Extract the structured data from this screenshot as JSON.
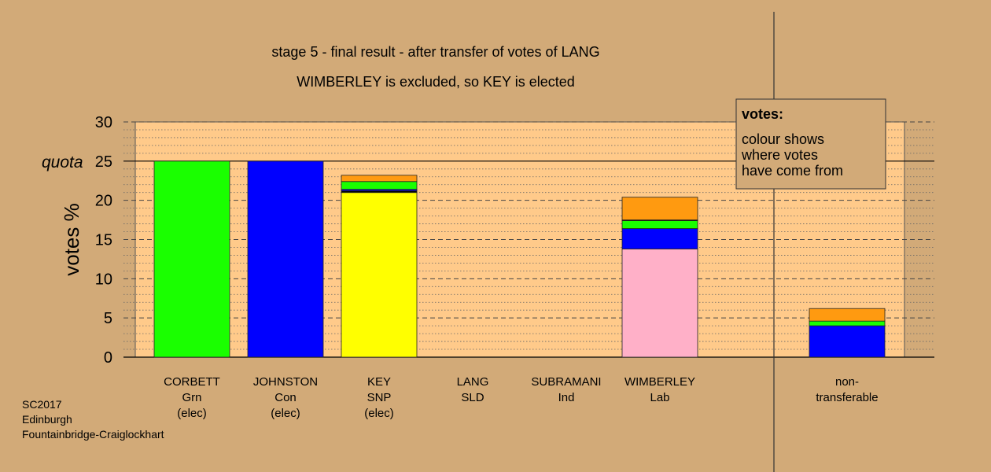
{
  "chart_data": {
    "type": "bar",
    "stacked": true,
    "title": "stage 5 - final result - after transfer of votes of LANG",
    "subtitle": "WIMBERLEY is excluded, so KEY is elected",
    "ylabel": "votes %",
    "ylim": [
      0,
      30
    ],
    "yticks": [
      "0",
      "5",
      "10",
      "15",
      "20",
      "25",
      "30"
    ],
    "quota_label": "quota",
    "quota_value": 25,
    "grid": "dotted minor lines every 1, dashed major lines every 5",
    "legend": {
      "heading": "votes:",
      "lines": [
        "colour shows",
        "where votes",
        "have come from"
      ],
      "placement": "top-right"
    },
    "categories": [
      {
        "lines": [
          "CORBETT",
          "Grn",
          "(elec)"
        ]
      },
      {
        "lines": [
          "JOHNSTON",
          "Con",
          "(elec)"
        ]
      },
      {
        "lines": [
          "KEY",
          "SNP",
          "(elec)"
        ]
      },
      {
        "lines": [
          "LANG",
          "SLD",
          ""
        ]
      },
      {
        "lines": [
          "SUBRAMANI",
          "Ind",
          ""
        ]
      },
      {
        "lines": [
          "WIMBERLEY",
          "Lab",
          ""
        ]
      },
      {
        "lines": [
          "",
          "",
          ""
        ]
      },
      {
        "lines": [
          "non-",
          "transferable",
          ""
        ]
      }
    ],
    "segment_colors": {
      "green": "#1aff00",
      "blue": "#0000ff",
      "yellow": "#ffff00",
      "pink": "#ffb0c8",
      "orange": "#ff9a10",
      "black": "#000000"
    },
    "bars": [
      {
        "segments": [
          {
            "color": "green",
            "value": 25
          }
        ]
      },
      {
        "segments": [
          {
            "color": "blue",
            "value": 25
          }
        ]
      },
      {
        "segments": [
          {
            "color": "yellow",
            "value": 21
          },
          {
            "color": "black",
            "value": 0.2
          },
          {
            "color": "blue",
            "value": 0.2
          },
          {
            "color": "green",
            "value": 1
          },
          {
            "color": "orange",
            "value": 0.8
          }
        ]
      },
      {
        "segments": []
      },
      {
        "segments": []
      },
      {
        "segments": [
          {
            "color": "pink",
            "value": 13.8
          },
          {
            "color": "blue",
            "value": 2.6
          },
          {
            "color": "green",
            "value": 1
          },
          {
            "color": "black",
            "value": 0.1
          },
          {
            "color": "orange",
            "value": 2.9
          }
        ]
      },
      {
        "segments": []
      },
      {
        "segments": [
          {
            "color": "blue",
            "value": 4
          },
          {
            "color": "green",
            "value": 0.6
          },
          {
            "color": "orange",
            "value": 1.6
          }
        ]
      }
    ],
    "footer": [
      "SC2017",
      "Edinburgh",
      "Fountainbridge-Craiglockhart"
    ]
  }
}
